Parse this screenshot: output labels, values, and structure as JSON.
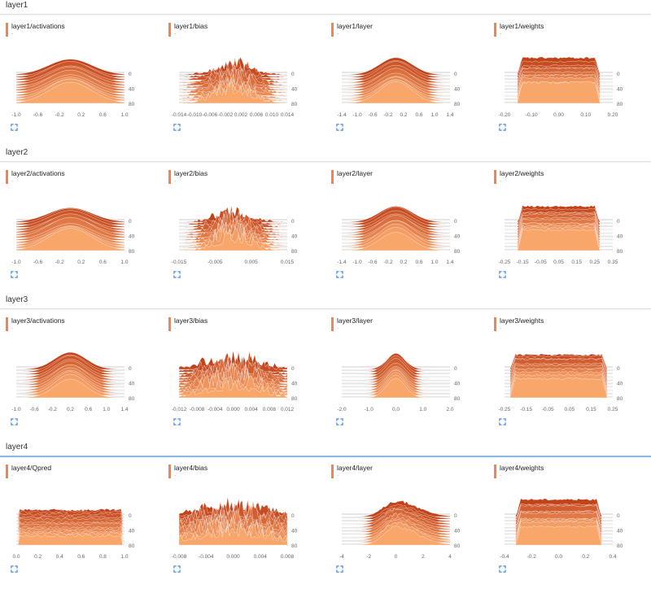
{
  "sections": [
    {
      "title": "layer1",
      "cards": [
        {
          "title": "layer1/activations",
          "subtitle": ".",
          "xticks": [
            "-1.0",
            "-0.6",
            "-0.2",
            "0.2",
            "0.6",
            "1.0"
          ],
          "xmin": -1.0,
          "xmax": 1.0,
          "yticks": [
            "0",
            "40",
            "80"
          ],
          "shape": "normal",
          "spread": 0.4
        },
        {
          "title": "layer1/bias",
          "subtitle": ".",
          "xticks": [
            "-0.014",
            "-0.010",
            "-0.006",
            "-0.002",
            "0.002",
            "0.006",
            "0.010",
            "0.014"
          ],
          "xmin": -0.014,
          "xmax": 0.014,
          "yticks": [
            "0",
            "40",
            "80"
          ],
          "shape": "spiky",
          "spread": 0.005
        },
        {
          "title": "layer1/layer",
          "subtitle": ".",
          "xticks": [
            "-1.4",
            "-1.0",
            "-0.6",
            "-0.2",
            "0.2",
            "0.6",
            "1.0",
            "1.4"
          ],
          "xmin": -1.4,
          "xmax": 1.4,
          "yticks": [
            "0",
            "40",
            "80"
          ],
          "shape": "normal",
          "spread": 0.42
        },
        {
          "title": "layer1/weights",
          "subtitle": ".",
          "xticks": [
            "-0.20",
            "-0.10",
            "0.00",
            "0.10",
            "0.20"
          ],
          "xmin": -0.2,
          "xmax": 0.2,
          "yticks": [
            "0",
            "40",
            "80"
          ],
          "shape": "uniform",
          "spread": 0.135
        }
      ]
    },
    {
      "title": "layer2",
      "cards": [
        {
          "title": "layer2/activations",
          "subtitle": ".",
          "xticks": [
            "-1.0",
            "-0.6",
            "-0.2",
            "0.2",
            "0.6",
            "1.0"
          ],
          "xmin": -1.0,
          "xmax": 1.0,
          "yticks": [
            "0",
            "40",
            "80"
          ],
          "shape": "normal",
          "spread": 0.4
        },
        {
          "title": "layer2/bias",
          "subtitle": ".",
          "xticks": [
            "-0.015",
            "-0.005",
            "0.005",
            "0.015"
          ],
          "xmin": -0.015,
          "xmax": 0.015,
          "yticks": [
            "0",
            "40",
            "80"
          ],
          "shape": "spiky",
          "spread": 0.005
        },
        {
          "title": "layer2/layer",
          "subtitle": ".",
          "xticks": [
            "-1.4",
            "-1.0",
            "-0.6",
            "-0.2",
            "0.2",
            "0.6",
            "1.0",
            "1.4"
          ],
          "xmin": -1.4,
          "xmax": 1.4,
          "yticks": [
            "0",
            "40",
            "80"
          ],
          "shape": "normal",
          "spread": 0.42
        },
        {
          "title": "layer2/weights",
          "subtitle": ".",
          "xticks": [
            "-0.25",
            "-0.15",
            "-0.05",
            "0.05",
            "0.15",
            "0.25",
            "0.35"
          ],
          "xmin": -0.25,
          "xmax": 0.35,
          "yticks": [
            "0",
            "40",
            "80"
          ],
          "shape": "uniform",
          "spread": 0.2
        }
      ]
    },
    {
      "title": "layer3",
      "cards": [
        {
          "title": "layer3/activations",
          "subtitle": ".",
          "xticks": [
            "-1.0",
            "-0.6",
            "-0.2",
            "0.2",
            "0.6",
            "1.0",
            "1.4"
          ],
          "xmin": -1.0,
          "xmax": 1.4,
          "yticks": [
            "0",
            "40",
            "80"
          ],
          "shape": "normal",
          "spread": 0.35
        },
        {
          "title": "layer3/bias",
          "subtitle": ".",
          "xticks": [
            "-0.012",
            "-0.008",
            "-0.004",
            "0.000",
            "0.004",
            "0.008",
            "0.012"
          ],
          "xmin": -0.012,
          "xmax": 0.012,
          "yticks": [
            "0",
            "40",
            "80"
          ],
          "shape": "spiky",
          "spread": 0.006
        },
        {
          "title": "layer3/layer",
          "subtitle": ".",
          "xticks": [
            "-2.0",
            "-1.0",
            "0.0",
            "1.0",
            "2.0"
          ],
          "xmin": -2.0,
          "xmax": 2.0,
          "yticks": [
            "0",
            "40",
            "80"
          ],
          "shape": "normal",
          "spread": 0.35
        },
        {
          "title": "layer3/weights",
          "subtitle": ".",
          "xticks": [
            "-0.25",
            "-0.15",
            "-0.05",
            "0.05",
            "0.15",
            "0.25"
          ],
          "xmin": -0.25,
          "xmax": 0.25,
          "yticks": [
            "0",
            "40",
            "80"
          ],
          "shape": "uniform",
          "spread": 0.2
        }
      ]
    },
    {
      "title": "layer4",
      "active": true,
      "cards": [
        {
          "title": "layer4/Qpred",
          "subtitle": ".",
          "xticks": [
            "0.0",
            "0.2",
            "0.4",
            "0.6",
            "0.8",
            "1.0"
          ],
          "xmin": 0.0,
          "xmax": 1.0,
          "yticks": [
            "0",
            "40",
            "80"
          ],
          "shape": "flat",
          "spread": 0.4
        },
        {
          "title": "layer4/bias",
          "subtitle": ".",
          "xticks": [
            "-0.008",
            "-0.004",
            "0.000",
            "0.004",
            "0.008"
          ],
          "xmin": -0.008,
          "xmax": 0.008,
          "yticks": [
            "0",
            "40",
            "80"
          ],
          "shape": "spiky",
          "spread": 0.006
        },
        {
          "title": "layer4/layer",
          "subtitle": ".",
          "xticks": [
            "-4",
            "-2",
            "0",
            "2",
            "4"
          ],
          "xmin": -4,
          "xmax": 4,
          "yticks": [
            "0",
            "40",
            "80"
          ],
          "shape": "skew",
          "spread": 1.2
        },
        {
          "title": "layer4/weights",
          "subtitle": ".",
          "xticks": [
            "-0.4",
            "-0.2",
            "0.0",
            "0.2",
            "0.4"
          ],
          "xmin": -0.4,
          "xmax": 0.4,
          "yticks": [
            "0",
            "40",
            "80"
          ],
          "shape": "uniform",
          "spread": 0.28
        }
      ]
    }
  ],
  "colors": {
    "dark": "#c2431a",
    "mid": "#e8773f",
    "light": "#f9a66b",
    "grid": "#e6e6e6",
    "accent": "#f4844c",
    "expand": "#4a90d9"
  },
  "icons": {
    "expand": "expand-icon"
  }
}
